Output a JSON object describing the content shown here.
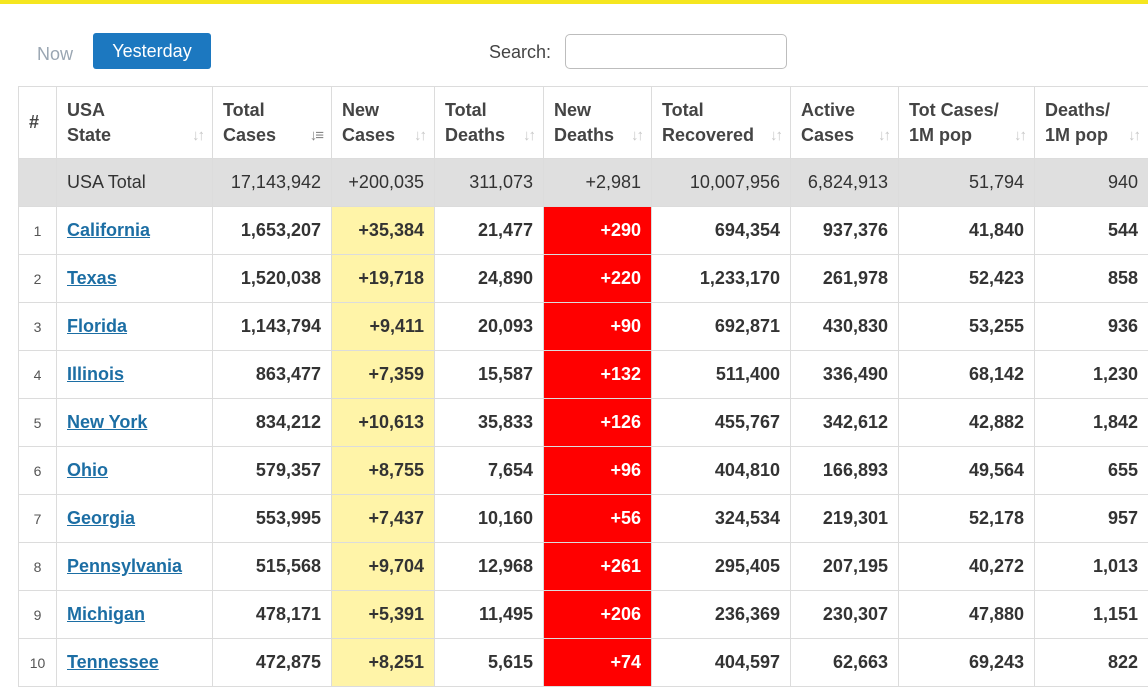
{
  "toolbar": {
    "tabs": [
      "Now",
      "Yesterday"
    ],
    "active_tab": "Yesterday",
    "search_label": "Search:",
    "search_value": "",
    "search_placeholder": ""
  },
  "colors": {
    "accent_bar": "#f5e61f",
    "active_tab": "#1c78c0",
    "new_cases_highlight": "#fff4a8",
    "new_deaths_highlight": "#ff0000",
    "link": "#1c6ea4"
  },
  "table": {
    "headers": [
      {
        "line1": "#",
        "line2": "",
        "sort": ""
      },
      {
        "line1": "USA",
        "line2": "State",
        "sort": "sort-icon"
      },
      {
        "line1": "Total",
        "line2": "Cases",
        "sort": "sort-desc-icon"
      },
      {
        "line1": "New",
        "line2": "Cases",
        "sort": "sort-icon"
      },
      {
        "line1": "Total",
        "line2": "Deaths",
        "sort": "sort-icon"
      },
      {
        "line1": "New",
        "line2": "Deaths",
        "sort": "sort-icon"
      },
      {
        "line1": "Total",
        "line2": "Recovered",
        "sort": "sort-icon"
      },
      {
        "line1": "Active",
        "line2": "Cases",
        "sort": "sort-icon"
      },
      {
        "line1": "Tot Cases/",
        "line2": "1M pop",
        "sort": "sort-icon"
      },
      {
        "line1": "Deaths/",
        "line2": "1M pop",
        "sort": "sort-icon"
      }
    ],
    "total": {
      "name": "USA Total",
      "total_cases": "17,143,942",
      "new_cases": "+200,035",
      "total_deaths": "311,073",
      "new_deaths": "+2,981",
      "total_recovered": "10,007,956",
      "active_cases": "6,824,913",
      "cases_per_1m": "51,794",
      "deaths_per_1m": "940"
    },
    "rows": [
      {
        "rank": "1",
        "name": "California",
        "total_cases": "1,653,207",
        "new_cases": "+35,384",
        "total_deaths": "21,477",
        "new_deaths": "+290",
        "total_recovered": "694,354",
        "active_cases": "937,376",
        "cases_per_1m": "41,840",
        "deaths_per_1m": "544"
      },
      {
        "rank": "2",
        "name": "Texas",
        "total_cases": "1,520,038",
        "new_cases": "+19,718",
        "total_deaths": "24,890",
        "new_deaths": "+220",
        "total_recovered": "1,233,170",
        "active_cases": "261,978",
        "cases_per_1m": "52,423",
        "deaths_per_1m": "858"
      },
      {
        "rank": "3",
        "name": "Florida",
        "total_cases": "1,143,794",
        "new_cases": "+9,411",
        "total_deaths": "20,093",
        "new_deaths": "+90",
        "total_recovered": "692,871",
        "active_cases": "430,830",
        "cases_per_1m": "53,255",
        "deaths_per_1m": "936"
      },
      {
        "rank": "4",
        "name": "Illinois",
        "total_cases": "863,477",
        "new_cases": "+7,359",
        "total_deaths": "15,587",
        "new_deaths": "+132",
        "total_recovered": "511,400",
        "active_cases": "336,490",
        "cases_per_1m": "68,142",
        "deaths_per_1m": "1,230"
      },
      {
        "rank": "5",
        "name": "New York",
        "total_cases": "834,212",
        "new_cases": "+10,613",
        "total_deaths": "35,833",
        "new_deaths": "+126",
        "total_recovered": "455,767",
        "active_cases": "342,612",
        "cases_per_1m": "42,882",
        "deaths_per_1m": "1,842"
      },
      {
        "rank": "6",
        "name": "Ohio",
        "total_cases": "579,357",
        "new_cases": "+8,755",
        "total_deaths": "7,654",
        "new_deaths": "+96",
        "total_recovered": "404,810",
        "active_cases": "166,893",
        "cases_per_1m": "49,564",
        "deaths_per_1m": "655"
      },
      {
        "rank": "7",
        "name": "Georgia",
        "total_cases": "553,995",
        "new_cases": "+7,437",
        "total_deaths": "10,160",
        "new_deaths": "+56",
        "total_recovered": "324,534",
        "active_cases": "219,301",
        "cases_per_1m": "52,178",
        "deaths_per_1m": "957"
      },
      {
        "rank": "8",
        "name": "Pennsylvania",
        "total_cases": "515,568",
        "new_cases": "+9,704",
        "total_deaths": "12,968",
        "new_deaths": "+261",
        "total_recovered": "295,405",
        "active_cases": "207,195",
        "cases_per_1m": "40,272",
        "deaths_per_1m": "1,013"
      },
      {
        "rank": "9",
        "name": "Michigan",
        "total_cases": "478,171",
        "new_cases": "+5,391",
        "total_deaths": "11,495",
        "new_deaths": "+206",
        "total_recovered": "236,369",
        "active_cases": "230,307",
        "cases_per_1m": "47,880",
        "deaths_per_1m": "1,151"
      },
      {
        "rank": "10",
        "name": "Tennessee",
        "total_cases": "472,875",
        "new_cases": "+8,251",
        "total_deaths": "5,615",
        "new_deaths": "+74",
        "total_recovered": "404,597",
        "active_cases": "62,663",
        "cases_per_1m": "69,243",
        "deaths_per_1m": "822"
      }
    ]
  }
}
